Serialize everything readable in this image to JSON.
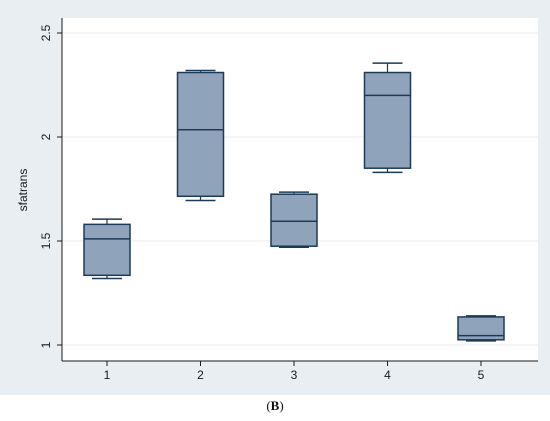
{
  "chart_data": {
    "type": "box",
    "categories": [
      "1",
      "2",
      "3",
      "4",
      "5"
    ],
    "series": [
      {
        "boxes": [
          {
            "min": 1.32,
            "q1": 1.335,
            "median": 1.51,
            "q3": 1.58,
            "max": 1.605
          },
          {
            "min": 1.695,
            "q1": 1.715,
            "median": 2.035,
            "q3": 2.31,
            "max": 2.32
          },
          {
            "min": 1.47,
            "q1": 1.475,
            "median": 1.595,
            "q3": 1.725,
            "max": 1.735
          },
          {
            "min": 1.83,
            "q1": 1.85,
            "median": 2.2,
            "q3": 2.31,
            "max": 2.355
          },
          {
            "min": 1.02,
            "q1": 1.025,
            "median": 1.045,
            "q3": 1.135,
            "max": 1.14
          }
        ]
      }
    ],
    "ylabel": "sfatrans",
    "xlabel": "",
    "title": "",
    "yticks": [
      "1",
      "1.5",
      "2",
      "2.5"
    ],
    "ytick_values": [
      1,
      1.5,
      2,
      2.5
    ],
    "ylim": [
      1,
      2.5
    ],
    "grid": true,
    "colors": {
      "outer_background": "#e9eef3",
      "plot_background": "#ffffff",
      "box_fill": "#8fa3bb",
      "box_line": "#1d3a57",
      "grid": "#e6ecf1",
      "axis": "#1a1a1a"
    }
  },
  "caption": {
    "open": "(",
    "label": "B",
    "close": ")"
  }
}
